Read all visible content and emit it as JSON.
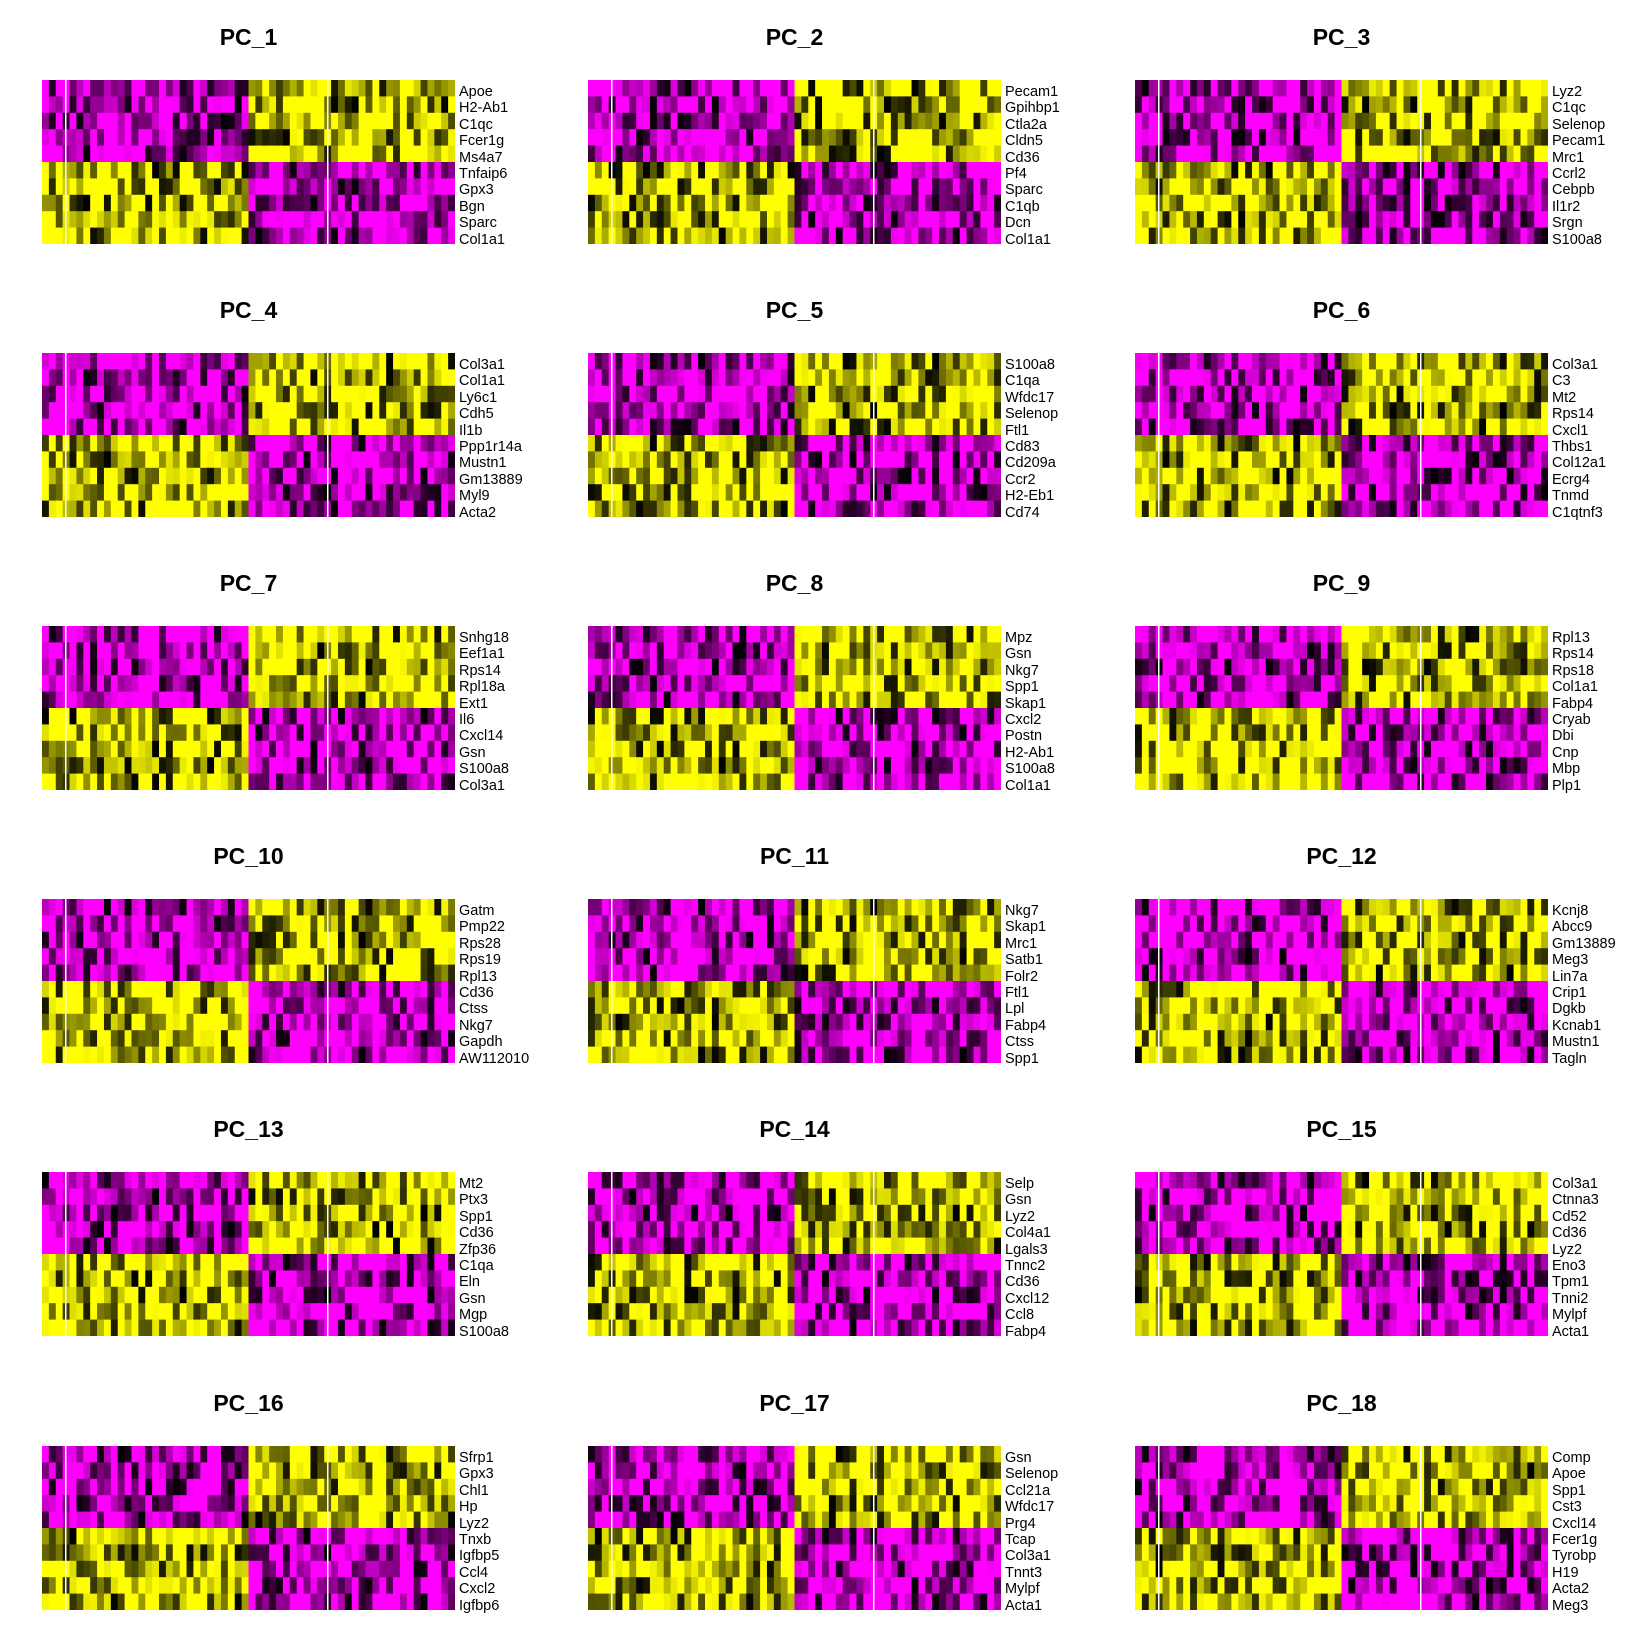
{
  "chart_data": [
    {
      "type": "heatmap",
      "title": "PC_1",
      "genes": [
        "Apoe",
        "H2-Ab1",
        "C1qc",
        "Fcer1g",
        "Ms4a7",
        "Tnfaip6",
        "Gpx3",
        "Bgn",
        "Sparc",
        "Col1a1"
      ]
    },
    {
      "type": "heatmap",
      "title": "PC_2",
      "genes": [
        "Pecam1",
        "Gpihbp1",
        "Ctla2a",
        "Cldn5",
        "Cd36",
        "Pf4",
        "Sparc",
        "C1qb",
        "Dcn",
        "Col1a1"
      ]
    },
    {
      "type": "heatmap",
      "title": "PC_3",
      "genes": [
        "Lyz2",
        "C1qc",
        "Selenop",
        "Pecam1",
        "Mrc1",
        "Ccrl2",
        "Cebpb",
        "Il1r2",
        "Srgn",
        "S100a8"
      ]
    },
    {
      "type": "heatmap",
      "title": "PC_4",
      "genes": [
        "Col3a1",
        "Col1a1",
        "Ly6c1",
        "Cdh5",
        "Il1b",
        "Ppp1r14a",
        "Mustn1",
        "Gm13889",
        "Myl9",
        "Acta2"
      ]
    },
    {
      "type": "heatmap",
      "title": "PC_5",
      "genes": [
        "S100a8",
        "C1qa",
        "Wfdc17",
        "Selenop",
        "Ftl1",
        "Cd83",
        "Cd209a",
        "Ccr2",
        "H2-Eb1",
        "Cd74"
      ]
    },
    {
      "type": "heatmap",
      "title": "PC_6",
      "genes": [
        "Col3a1",
        "C3",
        "Mt2",
        "Rps14",
        "Cxcl1",
        "Thbs1",
        "Col12a1",
        "Ecrg4",
        "Tnmd",
        "C1qtnf3"
      ]
    },
    {
      "type": "heatmap",
      "title": "PC_7",
      "genes": [
        "Snhg18",
        "Eef1a1",
        "Rps14",
        "Rpl18a",
        "Ext1",
        "Il6",
        "Cxcl14",
        "Gsn",
        "S100a8",
        "Col3a1"
      ]
    },
    {
      "type": "heatmap",
      "title": "PC_8",
      "genes": [
        "Mpz",
        "Gsn",
        "Nkg7",
        "Spp1",
        "Skap1",
        "Cxcl2",
        "Postn",
        "H2-Ab1",
        "S100a8",
        "Col1a1"
      ]
    },
    {
      "type": "heatmap",
      "title": "PC_9",
      "genes": [
        "Rpl13",
        "Rps14",
        "Rps18",
        "Col1a1",
        "Fabp4",
        "Cryab",
        "Dbi",
        "Cnp",
        "Mbp",
        "Plp1"
      ]
    },
    {
      "type": "heatmap",
      "title": "PC_10",
      "genes": [
        "Gatm",
        "Pmp22",
        "Rps28",
        "Rps19",
        "Rpl13",
        "Cd36",
        "Ctss",
        "Nkg7",
        "Gapdh",
        "AW112010"
      ]
    },
    {
      "type": "heatmap",
      "title": "PC_11",
      "genes": [
        "Nkg7",
        "Skap1",
        "Mrc1",
        "Satb1",
        "Folr2",
        "Ftl1",
        "Lpl",
        "Fabp4",
        "Ctss",
        "Spp1"
      ]
    },
    {
      "type": "heatmap",
      "title": "PC_12",
      "genes": [
        "Kcnj8",
        "Abcc9",
        "Gm13889",
        "Meg3",
        "Lin7a",
        "Crip1",
        "Dgkb",
        "Kcnab1",
        "Mustn1",
        "Tagln"
      ]
    },
    {
      "type": "heatmap",
      "title": "PC_13",
      "genes": [
        "Mt2",
        "Ptx3",
        "Spp1",
        "Cd36",
        "Zfp36",
        "C1qa",
        "Eln",
        "Gsn",
        "Mgp",
        "S100a8"
      ]
    },
    {
      "type": "heatmap",
      "title": "PC_14",
      "genes": [
        "Selp",
        "Gsn",
        "Lyz2",
        "Col4a1",
        "Lgals3",
        "Tnnc2",
        "Cd36",
        "Cxcl12",
        "Ccl8",
        "Fabp4"
      ]
    },
    {
      "type": "heatmap",
      "title": "PC_15",
      "genes": [
        "Col3a1",
        "Ctnna3",
        "Cd52",
        "Cd36",
        "Lyz2",
        "Eno3",
        "Tpm1",
        "Tnni2",
        "Mylpf",
        "Acta1"
      ]
    },
    {
      "type": "heatmap",
      "title": "PC_16",
      "genes": [
        "Sfrp1",
        "Gpx3",
        "Chl1",
        "Hp",
        "Lyz2",
        "Tnxb",
        "Igfbp5",
        "Ccl4",
        "Cxcl2",
        "Igfbp6"
      ]
    },
    {
      "type": "heatmap",
      "title": "PC_17",
      "genes": [
        "Gsn",
        "Selenop",
        "Ccl21a",
        "Wfdc17",
        "Prg4",
        "Tcap",
        "Col3a1",
        "Tnnt3",
        "Mylpf",
        "Acta1"
      ]
    },
    {
      "type": "heatmap",
      "title": "PC_18",
      "genes": [
        "Comp",
        "Apoe",
        "Spp1",
        "Cst3",
        "Cxcl14",
        "Fcer1g",
        "Tyrobp",
        "H19",
        "Acta2",
        "Meg3"
      ]
    }
  ],
  "colors": {
    "low": "#FF00FF",
    "mid": "#000000",
    "high": "#FFFF00"
  }
}
